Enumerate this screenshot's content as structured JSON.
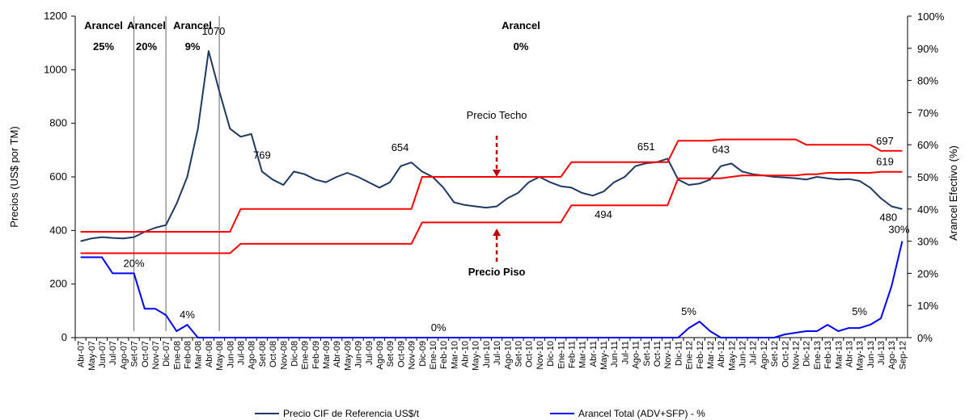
{
  "chart_data": {
    "type": "line",
    "title": "",
    "ylabel": "Precios (US$ por TM)",
    "y2label": "Arancel Efectivo (%)",
    "ylim": [
      0,
      1200
    ],
    "y2lim": [
      0,
      100
    ],
    "yticks": [
      "0",
      "200",
      "400",
      "600",
      "800",
      "1000",
      "1200"
    ],
    "y2ticks": [
      "0%",
      "10%",
      "20%",
      "30%",
      "40%",
      "50%",
      "60%",
      "70%",
      "80%",
      "90%",
      "100%"
    ],
    "categories": [
      "Abr-07",
      "May-07",
      "Jun-07",
      "Jul-07",
      "Ago-07",
      "Set-07",
      "Oct-07",
      "Nov-07",
      "Dic-07",
      "Ene-08",
      "Feb-08",
      "Mar-08",
      "Abr-08",
      "May-08",
      "Jun-08",
      "Jul-08",
      "Ago-08",
      "Set-08",
      "Oct-08",
      "Nov-08",
      "Dic-08",
      "Ene-09",
      "Feb-09",
      "Mar-09",
      "Abr-09",
      "May-09",
      "Jun-09",
      "Jul-09",
      "Ago-09",
      "Set-09",
      "Oct-09",
      "Nov-09",
      "Dic-09",
      "Ene-10",
      "Feb-10",
      "Mar-10",
      "Abr-10",
      "May-10",
      "Jun-10",
      "Jul-10",
      "Ago-10",
      "Set-10",
      "Oct-10",
      "Nov-10",
      "Dic-10",
      "Ene-11",
      "Feb-11",
      "Mar-11",
      "Abr-11",
      "May-11",
      "Jun-11",
      "Jul-11",
      "Ago-11",
      "Set-11",
      "Oct-11",
      "Nov-11",
      "Dic-11",
      "Ene-12",
      "Feb-12",
      "Mar-12",
      "Abr-12",
      "May-12",
      "Jun-12",
      "Jul-12",
      "Ago-12",
      "Set-12",
      "Oct-12",
      "Nov-12",
      "Dic-12",
      "Ene-13",
      "Feb-13",
      "Mar-13",
      "Abr-13",
      "May-13",
      "Jun-13",
      "Jul-13",
      "Ago-13",
      "Sep-12"
    ],
    "series": [
      {
        "name": "Precio CIF de Referencia US$/t",
        "axis": "left",
        "color": "#1f3864",
        "values": [
          360,
          370,
          375,
          372,
          370,
          375,
          395,
          410,
          420,
          500,
          600,
          780,
          1070,
          920,
          780,
          750,
          760,
          620,
          590,
          570,
          620,
          610,
          590,
          580,
          600,
          615,
          600,
          580,
          560,
          580,
          640,
          654,
          620,
          600,
          560,
          505,
          495,
          490,
          485,
          490,
          520,
          540,
          580,
          600,
          580,
          565,
          560,
          540,
          530,
          545,
          580,
          600,
          640,
          651,
          655,
          668,
          590,
          570,
          575,
          590,
          640,
          650,
          620,
          610,
          605,
          600,
          598,
          595,
          590,
          600,
          595,
          590,
          592,
          585,
          560,
          520,
          490,
          480
        ],
        "color_name": "dark-blue"
      },
      {
        "name": "Arancel Total (ADV+SFP) - %",
        "axis": "right",
        "color": "#0000ff",
        "values": [
          25,
          25,
          25,
          20,
          20,
          20,
          9,
          9,
          7,
          2,
          4,
          0,
          0,
          0,
          0,
          0,
          0,
          0,
          0,
          0,
          0,
          0,
          0,
          0,
          0,
          0,
          0,
          0,
          0,
          0,
          0,
          0,
          0,
          0,
          0,
          0,
          0,
          0,
          0,
          0,
          0,
          0,
          0,
          0,
          0,
          0,
          0,
          0,
          0,
          0,
          0,
          0,
          0,
          0,
          0,
          0,
          0,
          3,
          5,
          2,
          0,
          0,
          0,
          0,
          0,
          0,
          1,
          1.5,
          2,
          2,
          4,
          2,
          3,
          3,
          4,
          6,
          16,
          30
        ]
      },
      {
        "name": "Precio Techo",
        "axis": "left",
        "color": "#ff0000",
        "values": [
          395,
          395,
          395,
          395,
          395,
          395,
          395,
          395,
          395,
          395,
          395,
          395,
          395,
          395,
          395,
          480,
          480,
          480,
          480,
          480,
          480,
          480,
          480,
          480,
          480,
          480,
          480,
          480,
          480,
          480,
          480,
          480,
          600,
          600,
          600,
          600,
          600,
          600,
          600,
          600,
          600,
          600,
          600,
          600,
          600,
          600,
          655,
          655,
          655,
          655,
          655,
          655,
          655,
          655,
          655,
          655,
          735,
          735,
          735,
          735,
          740,
          740,
          740,
          740,
          740,
          740,
          740,
          740,
          720,
          720,
          720,
          720,
          720,
          720,
          720,
          697,
          697,
          697
        ]
      },
      {
        "name": "Precio Piso",
        "axis": "left",
        "color": "#ff0000",
        "values": [
          315,
          315,
          315,
          315,
          315,
          315,
          315,
          315,
          315,
          315,
          315,
          315,
          315,
          315,
          315,
          350,
          350,
          350,
          350,
          350,
          350,
          350,
          350,
          350,
          350,
          350,
          350,
          350,
          350,
          350,
          350,
          350,
          430,
          430,
          430,
          430,
          430,
          430,
          430,
          430,
          430,
          430,
          430,
          430,
          430,
          430,
          494,
          494,
          494,
          494,
          494,
          494,
          494,
          494,
          494,
          494,
          595,
          595,
          595,
          595,
          595,
          600,
          605,
          605,
          605,
          605,
          605,
          605,
          610,
          610,
          615,
          615,
          615,
          615,
          615,
          619,
          619,
          619
        ]
      }
    ],
    "arancel_labels": [
      {
        "line1": "Arancel",
        "line2": "25%"
      },
      {
        "line1": "Arancel",
        "line2": "20%"
      },
      {
        "line1": "Arancel",
        "line2": "9%"
      },
      {
        "line1": "Arancel",
        "line2": "0%"
      }
    ],
    "data_labels": {
      "cif": [
        "1070",
        "769",
        "654",
        "651",
        "643",
        "480"
      ],
      "techo": [
        "697"
      ],
      "piso": [
        "494",
        "619"
      ],
      "arancel": [
        "20%",
        "4%",
        "0%",
        "5%",
        "5%",
        "30%"
      ]
    },
    "arrow_labels": {
      "techo": "Precio Techo",
      "piso": "Precio Piso"
    },
    "legend": {
      "position": "bottom",
      "items": [
        {
          "label": "Precio CIF de Referencia US$/t",
          "color": "#1f3864"
        },
        {
          "label": "Arancel Total (ADV+SFP) - %",
          "color": "#0000ff"
        }
      ]
    },
    "dividers_color": "#808080",
    "arrow_color": "#c00000"
  }
}
